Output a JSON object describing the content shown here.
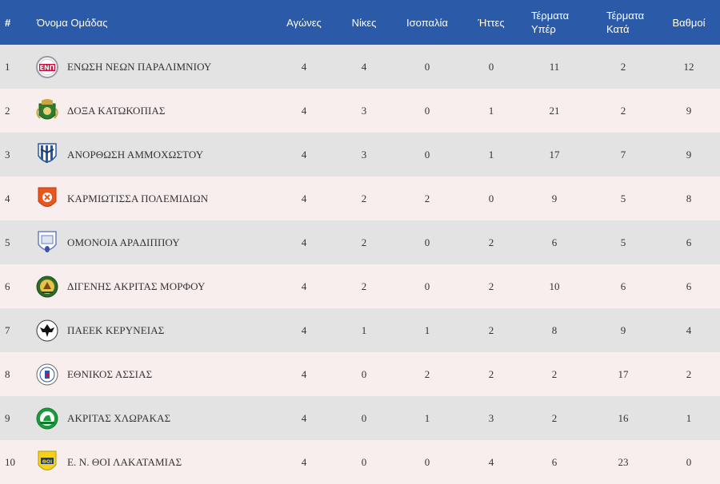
{
  "headers": {
    "rank": "#",
    "team": "Όνομα Ομάδας",
    "played": "Αγώνες",
    "wins": "Νίκες",
    "draws": "Ισοπαλία",
    "losses": "Ήττες",
    "goals_for_1": "Τέρματα",
    "goals_for_2": "Υπέρ",
    "goals_against_1": "Τέρματα",
    "goals_against_2": "Κατά",
    "points": "Βαθμοί"
  },
  "rows": [
    {
      "rank": "1",
      "team": "ΕΝΩΣΗ ΝΕΩΝ ΠΑΡΑΛΙΜΝΙΟΥ",
      "played": "4",
      "wins": "4",
      "draws": "0",
      "losses": "0",
      "gf": "11",
      "ga": "2",
      "pts": "12",
      "logo": "enp-crest-icon"
    },
    {
      "rank": "2",
      "team": "ΔΟΞΑ ΚΑΤΩΚΟΠΙΑΣ",
      "played": "4",
      "wins": "3",
      "draws": "0",
      "losses": "1",
      "gf": "21",
      "ga": "2",
      "pts": "9",
      "logo": "doxa-crest-icon"
    },
    {
      "rank": "3",
      "team": "ΑΝΟΡΘΩΣΗ ΑΜΜΟΧΩΣΤΟΥ",
      "played": "4",
      "wins": "3",
      "draws": "0",
      "losses": "1",
      "gf": "17",
      "ga": "7",
      "pts": "9",
      "logo": "anorthosis-crest-icon"
    },
    {
      "rank": "4",
      "team": "ΚΑΡΜΙΩΤΙΣΣΑ ΠΟΛΕΜΙΔΙΩΝ",
      "played": "4",
      "wins": "2",
      "draws": "2",
      "losses": "0",
      "gf": "9",
      "ga": "5",
      "pts": "8",
      "logo": "karmiotissa-crest-icon"
    },
    {
      "rank": "5",
      "team": "ΟΜΟΝΟΙΑ ΑΡΑΔΙΠΠΟΥ",
      "played": "4",
      "wins": "2",
      "draws": "0",
      "losses": "2",
      "gf": "6",
      "ga": "5",
      "pts": "6",
      "logo": "omonoia-aradippou-crest-icon"
    },
    {
      "rank": "6",
      "team": "ΔΙΓΕΝΗΣ ΑΚΡΙΤΑΣ ΜΟΡΦΟΥ",
      "played": "4",
      "wins": "2",
      "draws": "0",
      "losses": "2",
      "gf": "10",
      "ga": "6",
      "pts": "6",
      "logo": "digenis-crest-icon"
    },
    {
      "rank": "7",
      "team": "ΠΑΕΕΚ ΚΕΡΥΝΕΙΑΣ",
      "played": "4",
      "wins": "1",
      "draws": "1",
      "losses": "2",
      "gf": "8",
      "ga": "9",
      "pts": "4",
      "logo": "paeek-crest-icon"
    },
    {
      "rank": "8",
      "team": "ΕΘΝΙΚΟΣ ΑΣΣΙΑΣ",
      "played": "4",
      "wins": "0",
      "draws": "2",
      "losses": "2",
      "gf": "2",
      "ga": "17",
      "pts": "2",
      "logo": "ethnikos-assias-crest-icon"
    },
    {
      "rank": "9",
      "team": "ΑΚΡΙΤΑΣ ΧΛΩΡΑΚΑΣ",
      "played": "4",
      "wins": "0",
      "draws": "1",
      "losses": "3",
      "gf": "2",
      "ga": "16",
      "pts": "1",
      "logo": "akritas-crest-icon"
    },
    {
      "rank": "10",
      "team": "Ε. Ν. ΘΟΙ ΛΑΚΑΤΑΜΙΑΣ",
      "played": "4",
      "wins": "0",
      "draws": "0",
      "losses": "4",
      "gf": "6",
      "ga": "23",
      "pts": "0",
      "logo": "thoi-crest-icon"
    }
  ],
  "colors": {
    "header_bg": "#2a5aa8",
    "row_odd": "#e3e3e3",
    "row_even": "#f9eeee"
  }
}
